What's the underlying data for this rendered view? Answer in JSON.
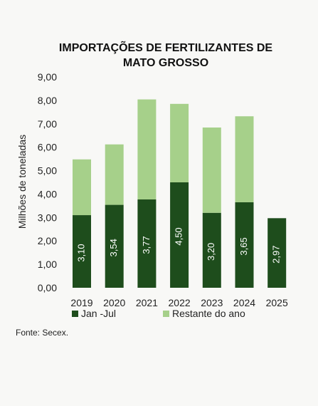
{
  "chart_data": {
    "type": "bar",
    "stacked": true,
    "title_lines": [
      "IMPORTAÇÕES DE FERTILIZANTES DE",
      "MATO GROSSO"
    ],
    "ylabel": "Milhões de toneladas",
    "xlabel": "",
    "categories": [
      "2019",
      "2020",
      "2021",
      "2022",
      "2023",
      "2024",
      "2025"
    ],
    "ylim": [
      0,
      9
    ],
    "yticks": [
      "0,00",
      "1,00",
      "2,00",
      "3,00",
      "4,00",
      "5,00",
      "6,00",
      "7,00",
      "8,00",
      "9,00"
    ],
    "grid": false,
    "legend_position": "bottom",
    "series": [
      {
        "name": "Jan -Jul",
        "color": "#1e4d1c",
        "values": [
          3.1,
          3.54,
          3.77,
          4.5,
          3.2,
          3.65,
          2.97
        ],
        "labels": [
          "3,10",
          "3,54",
          "3,77",
          "4,50",
          "3,20",
          "3,65",
          "2,97"
        ]
      },
      {
        "name": "Restante do ano",
        "color": "#a6d08a",
        "values": [
          2.38,
          2.58,
          4.27,
          3.35,
          3.64,
          3.67,
          0
        ]
      }
    ],
    "source": "Fonte: Secex."
  }
}
